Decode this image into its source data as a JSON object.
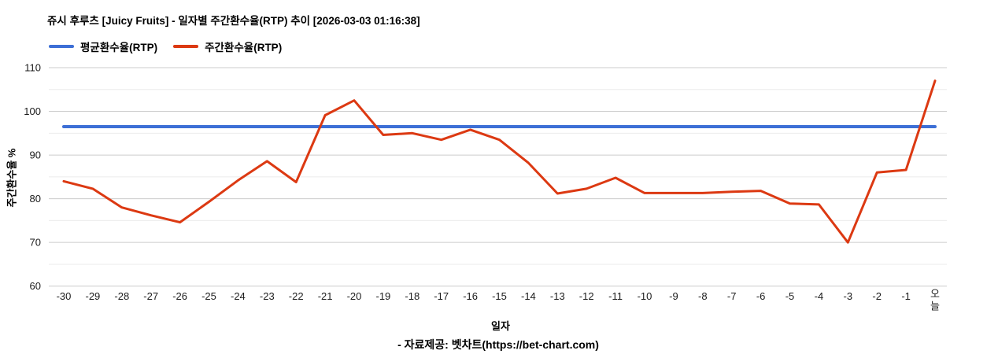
{
  "header": {
    "title": "쥬시 후루츠 [Juicy Fruits] - 일자별 주간환수율(RTP) 추이 [2026-03-03 01:16:38]"
  },
  "footer": {
    "source": "- 자료제공: 벳차트(https://bet-chart.com)"
  },
  "chart_data": {
    "type": "line",
    "title": "쥬시 후루츠 [Juicy Fruits] - 일자별 주간환수율(RTP) 추이 [2026-03-03 01:16:38]",
    "xlabel": "일자",
    "ylabel": "주간환수율 %",
    "ylim": [
      60,
      110
    ],
    "y_ticks": [
      110,
      100,
      90,
      80,
      70,
      60
    ],
    "y_minor_gridlines": [
      105,
      95,
      85,
      75,
      65
    ],
    "grid": "on",
    "legend_position": "top",
    "categories": [
      "-30",
      "-29",
      "-28",
      "-27",
      "-26",
      "-25",
      "-24",
      "-23",
      "-22",
      "-21",
      "-20",
      "-19",
      "-18",
      "-17",
      "-16",
      "-15",
      "-14",
      "-13",
      "-12",
      "-11",
      "-10",
      "-9",
      "-8",
      "-7",
      "-6",
      "-5",
      "-4",
      "-3",
      "-2",
      "-1",
      "오늘"
    ],
    "series": [
      {
        "name": "평균환수율(RTP)",
        "kind": "constant-line",
        "color": "#3d6fd6",
        "value": 96.5
      },
      {
        "name": "주간환수율(RTP)",
        "kind": "line",
        "color": "#dc3912",
        "values": [
          84.0,
          82.3,
          78.0,
          76.2,
          74.6,
          79.3,
          84.2,
          88.6,
          83.8,
          99.1,
          102.5,
          94.6,
          95.0,
          93.5,
          95.8,
          93.5,
          88.2,
          81.2,
          82.3,
          84.8,
          81.3,
          81.3,
          81.3,
          81.6,
          81.8,
          78.9,
          78.7,
          70.0,
          86.0,
          86.6,
          107.0
        ]
      }
    ],
    "colors": {
      "major_grid": "#cccccc",
      "minor_grid": "#ebebeb",
      "axis_text": "#1b1b1b"
    }
  }
}
